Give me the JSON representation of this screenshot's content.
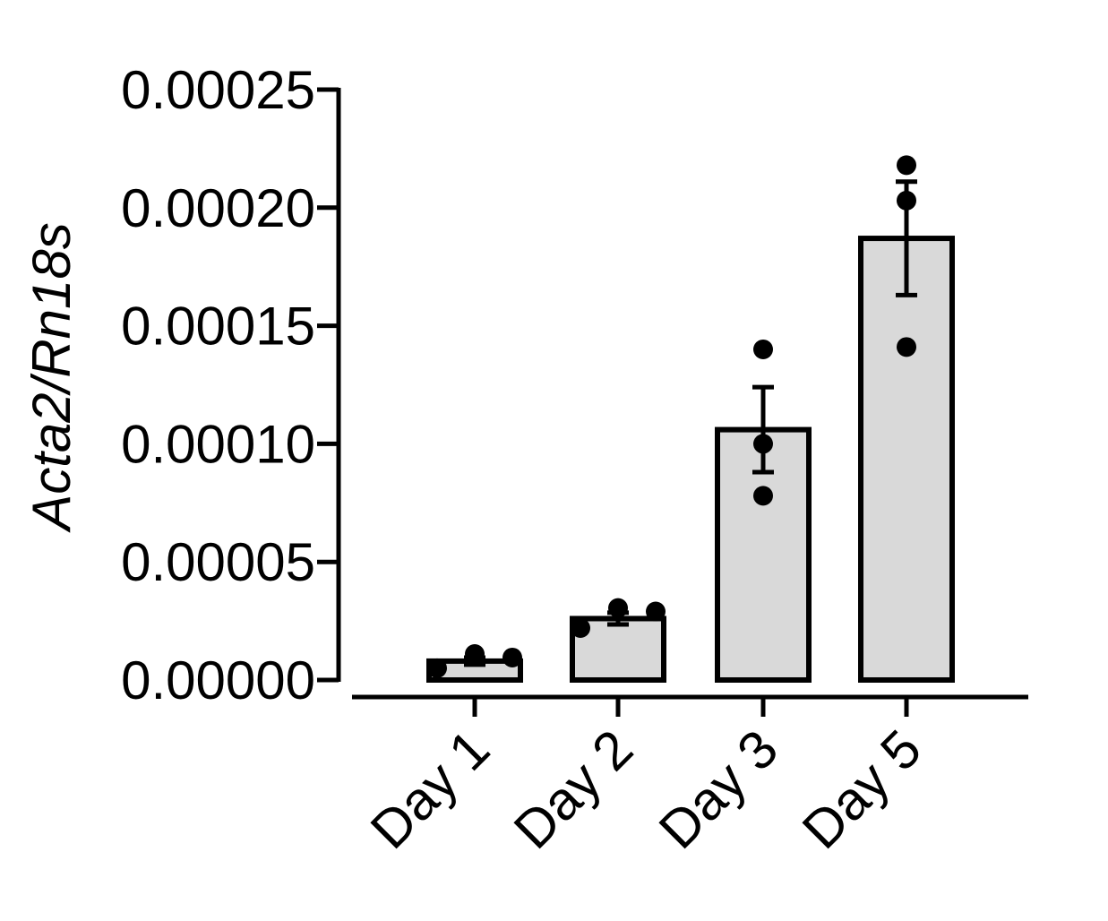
{
  "chart_data": {
    "type": "bar",
    "title": "",
    "xlabel": "",
    "ylabel": "Acta2/Rn18s",
    "categories": [
      "Day 1",
      "Day 2",
      "Day 3",
      "Day 5"
    ],
    "values": [
      8e-06,
      2.6e-05,
      0.000106,
      0.000187
    ],
    "sem": [
      1.5e-06,
      2.5e-06,
      1.8e-05,
      2.4e-05
    ],
    "points": [
      [
        5e-06,
        1.1e-05,
        9.5e-06
      ],
      [
        2.2e-05,
        3.05e-05,
        2.9e-05
      ],
      [
        0.00014,
        0.0001,
        7.8e-05
      ],
      [
        0.000218,
        0.000203,
        0.000141
      ]
    ],
    "ylim": [
      0,
      0.00025
    ],
    "yticks": [
      "0.00000",
      "0.00005",
      "0.00010",
      "0.00015",
      "0.00020",
      "0.00025"
    ],
    "bar_fill": "#d9d9d9",
    "bar_stroke": "#000000",
    "grid": false
  }
}
